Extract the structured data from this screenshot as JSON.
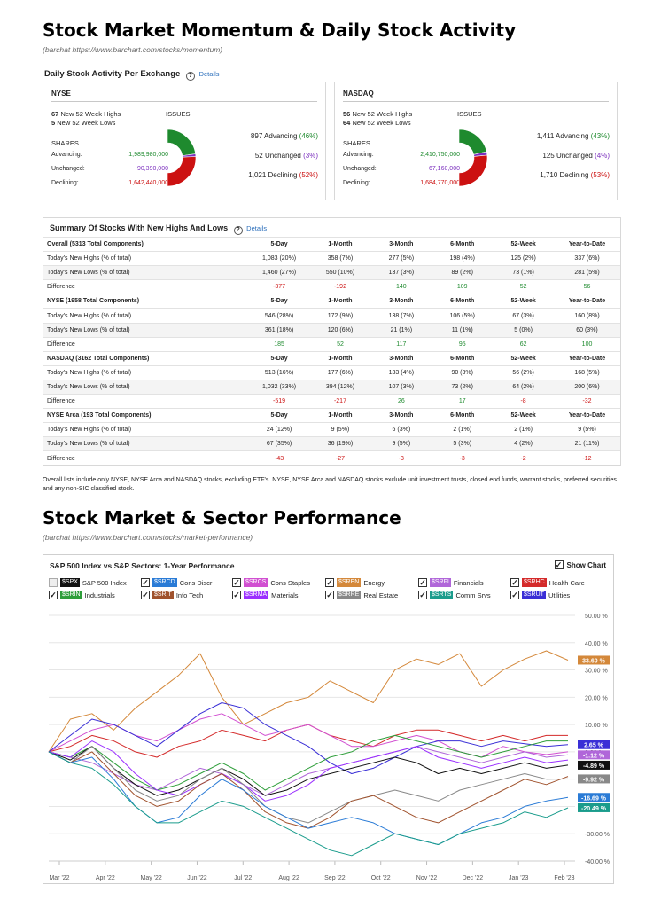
{
  "section1": {
    "title": "Stock Market Momentum & Daily Stock Activity",
    "source": "(barchat https://www.barchart.com/stocks/momentum)"
  },
  "activity": {
    "title": "Daily Stock Activity Per Exchange",
    "details": "Details",
    "exchanges": [
      {
        "name": "NYSE",
        "highs_num": "67",
        "highs_text": "New 52 Week Highs",
        "lows_num": "5",
        "lows_text": "New 52 Week Lows",
        "issues_label": "ISSUES",
        "shares_label": "SHARES",
        "adv_label": "Advancing:",
        "adv_value": "1,989,980,000",
        "unch_label": "Unchanged:",
        "unch_value": "90,390,000",
        "dec_label": "Declining:",
        "dec_value": "1,642,440,000",
        "issues_adv": "897 Advancing",
        "issues_adv_pct": "(46%)",
        "issues_unch": "52 Unchanged",
        "issues_unch_pct": "(3%)",
        "issues_dec": "1,021 Declining",
        "issues_dec_pct": "(52%)",
        "pct": {
          "adv": 46,
          "unch": 3,
          "dec": 52
        }
      },
      {
        "name": "NASDAQ",
        "highs_num": "56",
        "highs_text": "New 52 Week Highs",
        "lows_num": "64",
        "lows_text": "New 52 Week Lows",
        "issues_label": "ISSUES",
        "shares_label": "SHARES",
        "adv_label": "Advancing:",
        "adv_value": "2,410,750,000",
        "unch_label": "Unchanged:",
        "unch_value": "67,160,000",
        "dec_label": "Declining:",
        "dec_value": "1,684,770,000",
        "issues_adv": "1,411 Advancing",
        "issues_adv_pct": "(43%)",
        "issues_unch": "125 Unchanged",
        "issues_unch_pct": "(4%)",
        "issues_dec": "1,710 Declining",
        "issues_dec_pct": "(53%)",
        "pct": {
          "adv": 43,
          "unch": 4,
          "dec": 53
        }
      }
    ],
    "colors": {
      "adv": "#1e8a2e",
      "unch": "#7b2fbe",
      "dec": "#cc1111"
    }
  },
  "summary": {
    "title": "Summary Of Stocks With New Highs And Lows",
    "details": "Details",
    "groups": [
      {
        "header": [
          "Overall (5313 Total Components)",
          "5-Day",
          "1-Month",
          "3-Month",
          "6-Month",
          "52-Week",
          "Year-to-Date"
        ],
        "rows": [
          [
            "Today's New Highs (% of total)",
            "1,083 (20%)",
            "358 (7%)",
            "277 (5%)",
            "198 (4%)",
            "125 (2%)",
            "337 (6%)"
          ],
          [
            "Today's New Lows (% of total)",
            "1,460 (27%)",
            "550 (10%)",
            "137 (3%)",
            "89 (2%)",
            "73 (1%)",
            "281 (5%)"
          ],
          [
            "Difference",
            "-377",
            "-192",
            "140",
            "109",
            "52",
            "56"
          ]
        ]
      },
      {
        "header": [
          "NYSE (1958 Total Components)",
          "5-Day",
          "1-Month",
          "3-Month",
          "6-Month",
          "52-Week",
          "Year-to-Date"
        ],
        "rows": [
          [
            "Today's New Highs (% of total)",
            "546 (28%)",
            "172 (9%)",
            "138 (7%)",
            "106 (5%)",
            "67 (3%)",
            "160 (8%)"
          ],
          [
            "Today's New Lows (% of total)",
            "361 (18%)",
            "120 (6%)",
            "21 (1%)",
            "11 (1%)",
            "5 (0%)",
            "60 (3%)"
          ],
          [
            "Difference",
            "185",
            "52",
            "117",
            "95",
            "62",
            "100"
          ]
        ]
      },
      {
        "header": [
          "NASDAQ (3162 Total Components)",
          "5-Day",
          "1-Month",
          "3-Month",
          "6-Month",
          "52-Week",
          "Year-to-Date"
        ],
        "rows": [
          [
            "Today's New Highs (% of total)",
            "513 (16%)",
            "177 (6%)",
            "133 (4%)",
            "90 (3%)",
            "56 (2%)",
            "168 (5%)"
          ],
          [
            "Today's New Lows (% of total)",
            "1,032 (33%)",
            "394 (12%)",
            "107 (3%)",
            "73 (2%)",
            "64 (2%)",
            "200 (6%)"
          ],
          [
            "Difference",
            "-519",
            "-217",
            "26",
            "17",
            "-8",
            "-32"
          ]
        ]
      },
      {
        "header": [
          "NYSE Arca (193 Total Components)",
          "5-Day",
          "1-Month",
          "3-Month",
          "6-Month",
          "52-Week",
          "Year-to-Date"
        ],
        "rows": [
          [
            "Today's New Highs (% of total)",
            "24 (12%)",
            "9 (5%)",
            "6 (3%)",
            "2 (1%)",
            "2 (1%)",
            "9 (5%)"
          ],
          [
            "Today's New Lows (% of total)",
            "67 (35%)",
            "36 (19%)",
            "9 (5%)",
            "5 (3%)",
            "4 (2%)",
            "21 (11%)"
          ],
          [
            "Difference",
            "-43",
            "-27",
            "-3",
            "-3",
            "-2",
            "-12"
          ]
        ]
      }
    ],
    "footnote": "Overall lists include only NYSE, NYSE Arca and NASDAQ stocks, excluding ETF's. NYSE, NYSE Arca and NASDAQ stocks exclude unit investment trusts, closed end funds, warrant stocks, preferred securities and any non-SIC classified stock."
  },
  "section2": {
    "title": "Stock Market & Sector Performance",
    "source": "(barchat https://www.barchart.com/stocks/market-performance)"
  },
  "chart_data": {
    "type": "line",
    "title": "S&P 500 Index vs S&P Sectors: 1-Year Performance",
    "show_chart_label": "Show Chart",
    "x_ticks": [
      "Mar '22",
      "Apr '22",
      "May '22",
      "Jun '22",
      "Jul '22",
      "Aug '22",
      "Sep '22",
      "Oct '22",
      "Nov '22",
      "Dec '22",
      "Jan '23",
      "Feb '23"
    ],
    "y_ticks": [
      "50.00 %",
      "40.00 %",
      "30.00 %",
      "20.00 %",
      "10.00 %",
      "0.00 %",
      "-10.00 %",
      "-20.00 %",
      "-30.00 %",
      "-40.00 %"
    ],
    "ylim": [
      -40,
      50
    ],
    "grid": true,
    "legend": [
      {
        "symbol": "$SPX",
        "name": "S&P 500 Index",
        "color": "#111111",
        "checked": false
      },
      {
        "symbol": "$SRCD",
        "name": "Cons Discr",
        "color": "#2a7bd6",
        "checked": true
      },
      {
        "symbol": "$SRCS",
        "name": "Cons Staples",
        "color": "#d14fd1",
        "checked": true
      },
      {
        "symbol": "$SREN",
        "name": "Energy",
        "color": "#d4883a",
        "checked": true
      },
      {
        "symbol": "$SRFI",
        "name": "Financials",
        "color": "#b066d9",
        "checked": true
      },
      {
        "symbol": "$SRHC",
        "name": "Health Care",
        "color": "#d42a2a",
        "checked": true
      },
      {
        "symbol": "$SRIN",
        "name": "Industrials",
        "color": "#2e9e3a",
        "checked": true
      },
      {
        "symbol": "$SRIT",
        "name": "Info Tech",
        "color": "#a0522d",
        "checked": true
      },
      {
        "symbol": "$SRMA",
        "name": "Materials",
        "color": "#9b30ff",
        "checked": true
      },
      {
        "symbol": "$SRRE",
        "name": "Real Estate",
        "color": "#888888",
        "checked": true
      },
      {
        "symbol": "$SRTS",
        "name": "Comm Srvs",
        "color": "#1a9c8c",
        "checked": true
      },
      {
        "symbol": "$SRUT",
        "name": "Utilities",
        "color": "#3a2fd6",
        "checked": true
      }
    ],
    "series": [
      {
        "symbol": "$SREN",
        "color": "#d4883a",
        "end_label": "33.60 %",
        "values": [
          0,
          12,
          14,
          8,
          16,
          22,
          28,
          36,
          20,
          10,
          14,
          18,
          20,
          26,
          22,
          18,
          30,
          34,
          32,
          36,
          24,
          30,
          34,
          37,
          33.6
        ]
      },
      {
        "symbol": "$SRHC",
        "color": "#d42a2a",
        "end_label": "",
        "values": [
          0,
          2,
          6,
          4,
          0,
          -2,
          2,
          4,
          8,
          6,
          4,
          8,
          10,
          6,
          4,
          2,
          6,
          8,
          8,
          6,
          4,
          6,
          4,
          6,
          6
        ]
      },
      {
        "symbol": "$SRCS",
        "color": "#d14fd1",
        "end_label": "",
        "values": [
          0,
          4,
          8,
          10,
          6,
          4,
          8,
          12,
          14,
          10,
          6,
          8,
          10,
          6,
          2,
          2,
          4,
          6,
          4,
          0,
          -2,
          2,
          0,
          -1,
          0
        ]
      },
      {
        "symbol": "$SRUT",
        "color": "#3a2fd6",
        "end_label": "2.65 %",
        "values": [
          0,
          6,
          12,
          10,
          6,
          2,
          8,
          14,
          18,
          16,
          10,
          6,
          2,
          -4,
          -8,
          -6,
          -2,
          2,
          4,
          4,
          2,
          4,
          3,
          2,
          2.65
        ]
      },
      {
        "symbol": "$SRFI",
        "color": "#b066d9",
        "end_label": "-1.12 %",
        "values": [
          0,
          -2,
          -4,
          -8,
          -12,
          -14,
          -10,
          -6,
          -8,
          -12,
          -16,
          -12,
          -8,
          -6,
          -4,
          -2,
          0,
          2,
          0,
          -2,
          -4,
          -2,
          0,
          -2,
          -1.12
        ]
      },
      {
        "symbol": "$SRIN",
        "color": "#2e9e3a",
        "end_label": "",
        "values": [
          0,
          -2,
          2,
          -4,
          -10,
          -14,
          -12,
          -8,
          -4,
          -8,
          -14,
          -10,
          -6,
          -2,
          0,
          4,
          6,
          4,
          2,
          0,
          -2,
          0,
          2,
          4,
          4
        ]
      },
      {
        "symbol": "$SPX",
        "color": "#111111",
        "end_label": "-4.89 %",
        "values": [
          0,
          -3,
          2,
          -6,
          -12,
          -16,
          -14,
          -10,
          -6,
          -10,
          -16,
          -14,
          -10,
          -8,
          -6,
          -4,
          -2,
          -4,
          -8,
          -6,
          -8,
          -6,
          -4,
          -6,
          -4.89
        ]
      },
      {
        "symbol": "$SRMA",
        "color": "#9b30ff",
        "end_label": "",
        "values": [
          0,
          -2,
          4,
          0,
          -8,
          -14,
          -16,
          -12,
          -8,
          -12,
          -18,
          -16,
          -12,
          -6,
          -4,
          -2,
          0,
          2,
          -2,
          -4,
          -6,
          -4,
          -2,
          -4,
          -3
        ]
      },
      {
        "symbol": "$SRRE",
        "color": "#888888",
        "end_label": "-9.92 %",
        "values": [
          0,
          -4,
          2,
          -6,
          -14,
          -18,
          -16,
          -10,
          -6,
          -12,
          -20,
          -24,
          -26,
          -22,
          -18,
          -16,
          -14,
          -16,
          -18,
          -14,
          -12,
          -10,
          -8,
          -10,
          -9.92
        ]
      },
      {
        "symbol": "$SRIT",
        "color": "#a0522d",
        "end_label": "",
        "values": [
          0,
          -4,
          0,
          -8,
          -16,
          -20,
          -18,
          -12,
          -8,
          -14,
          -22,
          -26,
          -28,
          -24,
          -18,
          -16,
          -20,
          -24,
          -26,
          -22,
          -18,
          -14,
          -10,
          -12,
          -9
        ]
      },
      {
        "symbol": "$SRCD",
        "color": "#2a7bd6",
        "end_label": "-16.69 %",
        "values": [
          0,
          -4,
          -2,
          -10,
          -20,
          -26,
          -24,
          -16,
          -10,
          -14,
          -20,
          -24,
          -28,
          -26,
          -24,
          -26,
          -30,
          -32,
          -34,
          -30,
          -26,
          -24,
          -20,
          -18,
          -16.69
        ]
      },
      {
        "symbol": "$SRTS",
        "color": "#1a9c8c",
        "end_label": "-20.49 %",
        "values": [
          0,
          -4,
          -6,
          -12,
          -20,
          -26,
          -26,
          -22,
          -18,
          -20,
          -24,
          -28,
          -32,
          -36,
          -38,
          -34,
          -30,
          -32,
          -34,
          -30,
          -28,
          -26,
          -22,
          -24,
          -20.49
        ]
      }
    ]
  }
}
